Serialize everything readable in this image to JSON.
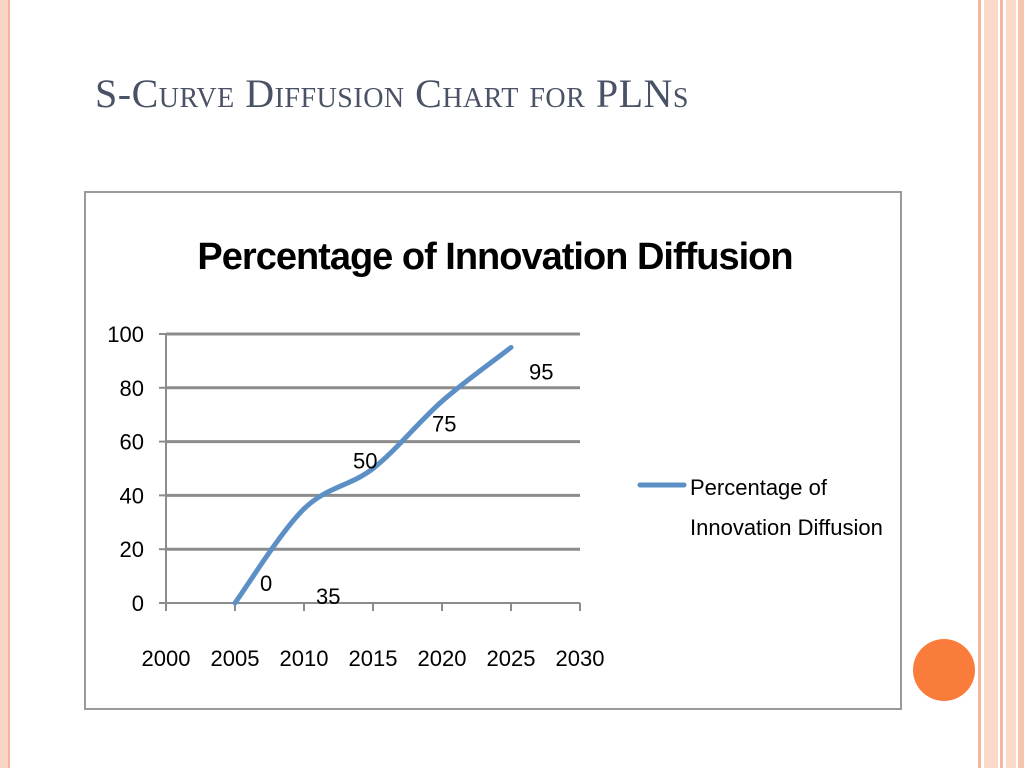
{
  "slide": {
    "title": "S-Curve Diffusion Chart for PLNs"
  },
  "colors": {
    "title": "#4a5266",
    "series_line": "#5b8fc5",
    "accent_dot": "#f97c3a",
    "frame": "#f2b49a"
  },
  "chart_data": {
    "type": "line",
    "title": "Percentage of Innovation Diffusion",
    "xlabel": "",
    "ylabel": "",
    "xlim": [
      2000,
      2030
    ],
    "ylim": [
      0,
      100
    ],
    "x_ticks": [
      2000,
      2005,
      2010,
      2015,
      2020,
      2025,
      2030
    ],
    "y_ticks": [
      0,
      20,
      40,
      60,
      80,
      100
    ],
    "grid": "horizontal",
    "legend": "right",
    "series": [
      {
        "name": "Percentage of Innovation Diffusion",
        "smooth": true,
        "points": [
          {
            "x": 2005,
            "y": 0,
            "label": "0"
          },
          {
            "x": 2010,
            "y": 35,
            "label": "35"
          },
          {
            "x": 2015,
            "y": 50,
            "label": "50"
          },
          {
            "x": 2020,
            "y": 75,
            "label": "75"
          },
          {
            "x": 2025,
            "y": 95,
            "label": "95"
          }
        ]
      }
    ]
  }
}
